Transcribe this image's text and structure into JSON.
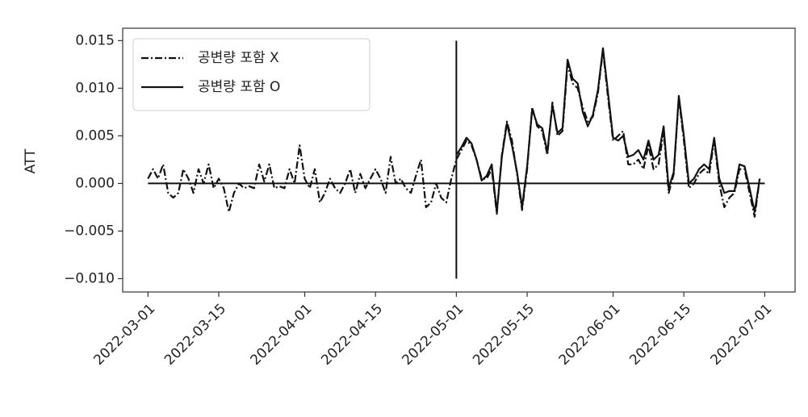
{
  "chart_data": {
    "type": "line",
    "ylabel": "ATT",
    "x": [
      "2022-03-01",
      "2022-03-02",
      "2022-03-03",
      "2022-03-04",
      "2022-03-05",
      "2022-03-06",
      "2022-03-07",
      "2022-03-08",
      "2022-03-09",
      "2022-03-10",
      "2022-03-11",
      "2022-03-12",
      "2022-03-13",
      "2022-03-14",
      "2022-03-15",
      "2022-03-16",
      "2022-03-17",
      "2022-03-18",
      "2022-03-19",
      "2022-03-20",
      "2022-03-21",
      "2022-03-22",
      "2022-03-23",
      "2022-03-24",
      "2022-03-25",
      "2022-03-26",
      "2022-03-27",
      "2022-03-28",
      "2022-03-29",
      "2022-03-30",
      "2022-03-31",
      "2022-04-01",
      "2022-04-02",
      "2022-04-03",
      "2022-04-04",
      "2022-04-05",
      "2022-04-06",
      "2022-04-07",
      "2022-04-08",
      "2022-04-09",
      "2022-04-10",
      "2022-04-11",
      "2022-04-12",
      "2022-04-13",
      "2022-04-14",
      "2022-04-15",
      "2022-04-16",
      "2022-04-17",
      "2022-04-18",
      "2022-04-19",
      "2022-04-20",
      "2022-04-21",
      "2022-04-22",
      "2022-04-23",
      "2022-04-24",
      "2022-04-25",
      "2022-04-26",
      "2022-04-27",
      "2022-04-28",
      "2022-04-29",
      "2022-04-30",
      "2022-05-01",
      "2022-05-02",
      "2022-05-03",
      "2022-05-04",
      "2022-05-05",
      "2022-05-06",
      "2022-05-07",
      "2022-05-08",
      "2022-05-09",
      "2022-05-10",
      "2022-05-11",
      "2022-05-12",
      "2022-05-13",
      "2022-05-14",
      "2022-05-15",
      "2022-05-16",
      "2022-05-17",
      "2022-05-18",
      "2022-05-19",
      "2022-05-20",
      "2022-05-21",
      "2022-05-22",
      "2022-05-23",
      "2022-05-24",
      "2022-05-25",
      "2022-05-26",
      "2022-05-27",
      "2022-05-28",
      "2022-05-29",
      "2022-05-30",
      "2022-05-31",
      "2022-06-01",
      "2022-06-02",
      "2022-06-03",
      "2022-06-04",
      "2022-06-05",
      "2022-06-06",
      "2022-06-07",
      "2022-06-08",
      "2022-06-09",
      "2022-06-10",
      "2022-06-11",
      "2022-06-12",
      "2022-06-13",
      "2022-06-14",
      "2022-06-15",
      "2022-06-16",
      "2022-06-17",
      "2022-06-18",
      "2022-06-19",
      "2022-06-20",
      "2022-06-21",
      "2022-06-22",
      "2022-06-23",
      "2022-06-24",
      "2022-06-25",
      "2022-06-26",
      "2022-06-27",
      "2022-06-28",
      "2022-06-29",
      "2022-06-30"
    ],
    "series": [
      {
        "name": "공변량 포함 X",
        "color": "#111111",
        "linestyle": "dashdot",
        "values": [
          0.0005,
          0.0015,
          0.0005,
          0.002,
          -0.001,
          -0.0015,
          -0.001,
          0.0015,
          0.0005,
          -0.001,
          0.0015,
          0,
          0.002,
          -0.0005,
          0.0005,
          -0.0005,
          -0.003,
          -0.001,
          0,
          -0.0005,
          -0.0003,
          -0.0005,
          0.002,
          0.0002,
          0.002,
          -0.0005,
          -0.0003,
          -0.0005,
          0.0015,
          0,
          0.004,
          0.0005,
          -0.0005,
          0.0015,
          -0.002,
          -0.001,
          0.0005,
          -0.0005,
          -0.001,
          0,
          0.0015,
          -0.001,
          0.001,
          -0.0005,
          0.0005,
          0.0015,
          0.0005,
          -0.001,
          0.0028,
          0,
          0.0005,
          -0.0005,
          -0.001,
          0.0008,
          0.0025,
          -0.0025,
          -0.002,
          0,
          -0.0015,
          -0.002,
          0.0005,
          0.0025,
          0.0035,
          0.0045,
          0.004,
          0.0025,
          0.0005,
          0.0005,
          0.0015,
          -0.0032,
          0.003,
          0.0065,
          0.0045,
          0.001,
          -0.0028,
          0.0015,
          0.008,
          0.006,
          0.0055,
          0.003,
          0.0085,
          0.005,
          0.0055,
          0.0125,
          0.0105,
          0.01,
          0.008,
          0.0065,
          0.007,
          0.0095,
          0.014,
          0.009,
          0.0045,
          0.005,
          0.0055,
          0.002,
          0.002,
          0.0025,
          0.0015,
          0.004,
          0.0015,
          0.002,
          0.0055,
          -0.001,
          0.001,
          0.009,
          0.0045,
          -0.0005,
          0,
          0.001,
          0.0015,
          0.001,
          0.0045,
          0,
          -0.0025,
          -0.0015,
          -0.001,
          0.0015,
          0.0015,
          -0.001,
          -0.0035,
          0.0005
        ]
      },
      {
        "name": "공변량 포함 O",
        "color": "#111111",
        "linestyle": "solid",
        "values": [
          null,
          null,
          null,
          null,
          null,
          null,
          null,
          null,
          null,
          null,
          null,
          null,
          null,
          null,
          null,
          null,
          null,
          null,
          null,
          null,
          null,
          null,
          null,
          null,
          null,
          null,
          null,
          null,
          null,
          null,
          null,
          null,
          null,
          null,
          null,
          null,
          null,
          null,
          null,
          null,
          null,
          null,
          null,
          null,
          null,
          null,
          null,
          null,
          null,
          null,
          null,
          null,
          null,
          null,
          null,
          null,
          null,
          null,
          null,
          null,
          null,
          0.003,
          0.0038,
          0.0048,
          0.0042,
          0.0025,
          0.0003,
          0.0008,
          0.002,
          -0.003,
          0.0028,
          0.0063,
          0.004,
          0.0012,
          -0.0025,
          0.0018,
          0.0078,
          0.0062,
          0.0058,
          0.0033,
          0.0082,
          0.0053,
          0.0058,
          0.013,
          0.011,
          0.0105,
          0.0075,
          0.006,
          0.0072,
          0.0098,
          0.0142,
          0.0095,
          0.0048,
          0.0045,
          0.005,
          0.0028,
          0.003,
          0.0035,
          0.0025,
          0.0045,
          0.0025,
          0.003,
          0.006,
          -0.0005,
          0.0012,
          0.0092,
          0.005,
          0,
          0.0005,
          0.0015,
          0.002,
          0.0015,
          0.0048,
          0.0005,
          -0.001,
          -0.0008,
          -0.0008,
          0.002,
          0.0018,
          -0.0005,
          -0.003,
          0.0005
        ]
      }
    ],
    "hline": {
      "y": 0,
      "xmin": "2022-03-01",
      "xmax": "2022-07-01"
    },
    "vline": {
      "x": "2022-05-01",
      "ymin": -0.01,
      "ymax": 0.015
    },
    "xlim": [
      "2022-02-24",
      "2022-07-07"
    ],
    "xticks": [
      "2022-03-01",
      "2022-03-15",
      "2022-04-01",
      "2022-04-15",
      "2022-05-01",
      "2022-05-15",
      "2022-06-01",
      "2022-06-15",
      "2022-07-01"
    ],
    "ylim": [
      -0.0114,
      0.0163
    ],
    "yticks": [
      {
        "value": -0.01,
        "label": "−0.010"
      },
      {
        "value": -0.005,
        "label": "−0.005"
      },
      {
        "value": 0,
        "label": "0.000"
      },
      {
        "value": 0.005,
        "label": "0.005"
      },
      {
        "value": 0.01,
        "label": "0.010"
      },
      {
        "value": 0.015,
        "label": "0.015"
      }
    ],
    "legend": "upper left"
  }
}
